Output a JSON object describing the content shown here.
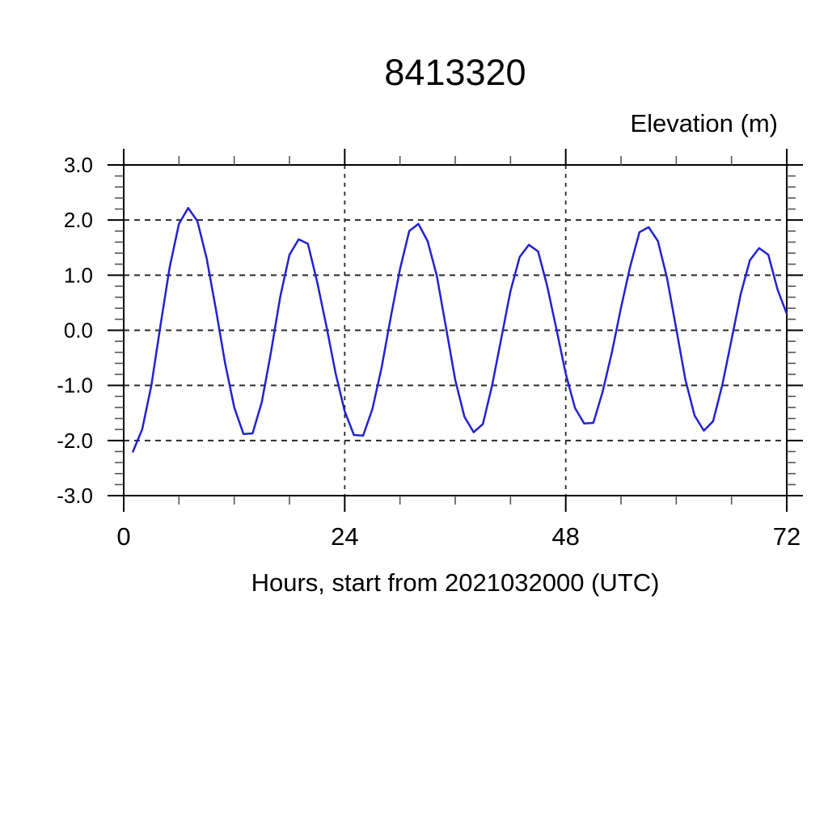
{
  "page": {
    "background_color": "#ffffff"
  },
  "chart_data": {
    "type": "line",
    "title": "8413320",
    "right_header": "Elevation (m)",
    "xlabel": "Hours, start from 2021032000 (UTC)",
    "ylabel": "",
    "xlim": [
      0,
      72
    ],
    "ylim": [
      -3.0,
      3.0
    ],
    "x_major_ticks": [
      0,
      24,
      48,
      72
    ],
    "x_major_labels": [
      "0",
      "24",
      "48",
      "72"
    ],
    "x_minor_step": 6,
    "y_major_ticks": [
      3.0,
      2.0,
      1.0,
      0.0,
      -1.0,
      -2.0,
      -3.0
    ],
    "y_major_labels": [
      "3.0",
      "2.0",
      "1.0",
      "0.0",
      "-1.0",
      "-2.0",
      "-3.0"
    ],
    "y_minor_step": 0.2,
    "grid": "dashed lines at every major tick, vertical gridlines at 24 and 48",
    "legend": "none",
    "line_color": "#2222cd",
    "grid_color": "#2b2b2b",
    "axis_color": "#000000",
    "series": [
      {
        "name": "elevation",
        "x": [
          1,
          2,
          3,
          4,
          5,
          6,
          7,
          8,
          9,
          10,
          11,
          12,
          13,
          14,
          15,
          16,
          17,
          18,
          19,
          20,
          21,
          22,
          23,
          24,
          25,
          26,
          27,
          28,
          29,
          30,
          31,
          32,
          33,
          34,
          35,
          36,
          37,
          38,
          39,
          40,
          41,
          42,
          43,
          44,
          45,
          46,
          47,
          48,
          49,
          50,
          51,
          52,
          53,
          54,
          55,
          56,
          57,
          58,
          59,
          60,
          61,
          62,
          63,
          64,
          65,
          66,
          67,
          68,
          69,
          70,
          71,
          72
        ],
        "y": [
          -2.2,
          -1.8,
          -1.0,
          0.1,
          1.15,
          1.93,
          2.22,
          1.98,
          1.31,
          0.39,
          -0.59,
          -1.4,
          -1.88,
          -1.87,
          -1.3,
          -0.39,
          0.61,
          1.37,
          1.65,
          1.57,
          0.88,
          0.08,
          -0.77,
          -1.47,
          -1.9,
          -1.91,
          -1.43,
          -0.68,
          0.24,
          1.11,
          1.8,
          1.93,
          1.62,
          0.99,
          0.05,
          -0.9,
          -1.57,
          -1.85,
          -1.7,
          -1.0,
          -0.15,
          0.71,
          1.33,
          1.55,
          1.43,
          0.79,
          0.01,
          -0.79,
          -1.41,
          -1.69,
          -1.68,
          -1.12,
          -0.41,
          0.41,
          1.16,
          1.78,
          1.87,
          1.62,
          0.95,
          0.03,
          -0.9,
          -1.55,
          -1.82,
          -1.65,
          -0.99,
          -0.17,
          0.66,
          1.27,
          1.49,
          1.37,
          0.74,
          0.3
        ]
      }
    ]
  }
}
